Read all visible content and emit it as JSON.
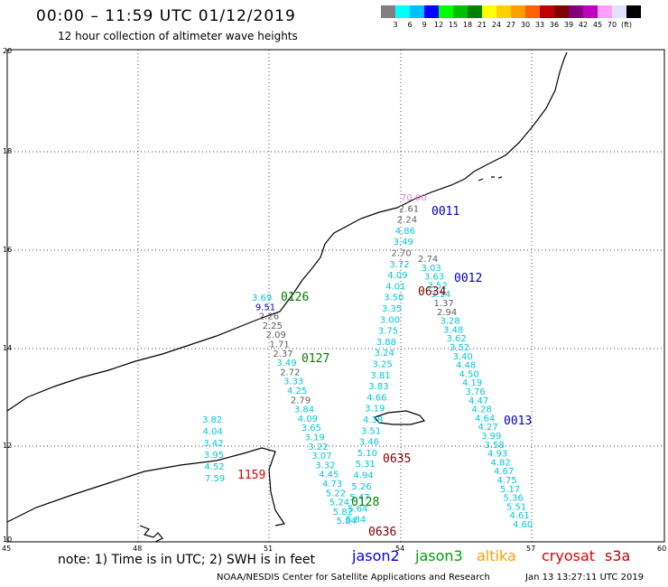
{
  "title": "00:00 – 11:59 UTC 01/12/2019",
  "subtitle": "12 hour collection of altimeter wave heights",
  "colorbar": {
    "colors": [
      "#808080",
      "#00ffff",
      "#00c0ff",
      "#0000ff",
      "#00ff00",
      "#00c000",
      "#008000",
      "#ffff00",
      "#ffd000",
      "#ffa000",
      "#ff6000",
      "#c00000",
      "#800000",
      "#800080",
      "#c000c0",
      "#ffa0ff",
      "#e0e0ff",
      "#000000"
    ],
    "labels": [
      "3",
      "6",
      "9",
      "12",
      "15",
      "18",
      "21",
      "24",
      "27",
      "30",
      "33",
      "36",
      "39",
      "42",
      "45",
      "70",
      "(ft)"
    ]
  },
  "axes": {
    "lon_labels": [
      "45",
      "48",
      "51",
      "54",
      "57",
      "60"
    ],
    "lat_labels": [
      "20",
      "18",
      "16",
      "14",
      "12",
      "10"
    ]
  },
  "passes": [
    {
      "label": "0011",
      "color": "#0000c0"
    },
    {
      "label": "0012",
      "color": "#0000c0"
    },
    {
      "label": "0013",
      "color": "#0000c0"
    },
    {
      "label": "0126",
      "color": "#008000"
    },
    {
      "label": "0127",
      "color": "#008000"
    },
    {
      "label": "0128",
      "color": "#008000"
    },
    {
      "label": "0634",
      "color": "#800000"
    },
    {
      "label": "0635",
      "color": "#800000"
    },
    {
      "label": "0636",
      "color": "#800000"
    },
    {
      "label": "1159",
      "color": "#e00000"
    }
  ],
  "values": {
    "track_a": [
      "3.82",
      "4.04",
      "3.42",
      "3.95",
      "4.52",
      "7.59"
    ],
    "track_b": [
      "3.69",
      "9.51",
      "2.26",
      "2.25",
      "2.09",
      "1.71",
      "2.37",
      "3.49",
      "2.72",
      "3.33",
      "4.25",
      "2.79",
      "3.84",
      "4.09",
      "3.65",
      "3.19",
      "3.22",
      "3.07",
      "3.32",
      "4.45",
      "4.73",
      "5.22",
      "5.24",
      "5.82",
      "5.84"
    ],
    "track_c": [
      "70.00",
      "2.61",
      "2.24",
      "4.86",
      "3.49",
      "2.70",
      "3.72",
      "4.09",
      "4.01",
      "3.50",
      "3.35",
      "3.00",
      "3.75",
      "3.88",
      "3.24",
      "3.25",
      "3.81",
      "3.83",
      "4.66",
      "3.19",
      "4.38",
      "3.51",
      "3.46",
      "5.10",
      "5.31",
      "4.94",
      "5.26",
      "5.47",
      "5.64",
      "5.84"
    ],
    "track_d": [
      "2.74",
      "3.03",
      "3.63",
      "3.52",
      "3.14",
      "1.37",
      "2.94",
      "3.28",
      "3.48",
      "3.62",
      "3.52",
      "3.40",
      "4.48",
      "4.50",
      "4.19",
      "3.76",
      "4.47",
      "4.28",
      "4.64",
      "4.27",
      "3.99",
      "3.58",
      "4.93",
      "4.82",
      "4.67",
      "4.75",
      "5.17",
      "5.36",
      "5.51",
      "4.61",
      "4.60"
    ]
  },
  "missions": [
    {
      "name": "jason2",
      "color": "#0000ff"
    },
    {
      "name": "jason3",
      "color": "#00a000"
    },
    {
      "name": "altika",
      "color": "#ffa000"
    },
    {
      "name": "cryosat",
      "color": "#e00000"
    },
    {
      "name": "s3a",
      "color": "#c00000"
    }
  ],
  "note": "note:  1) Time is in UTC;  2) SWH is in feet",
  "footer": "NOAA/NESDIS Center for Satellite Applications and Research",
  "footer_time": "Jan 13 13:27:11 UTC 2019"
}
